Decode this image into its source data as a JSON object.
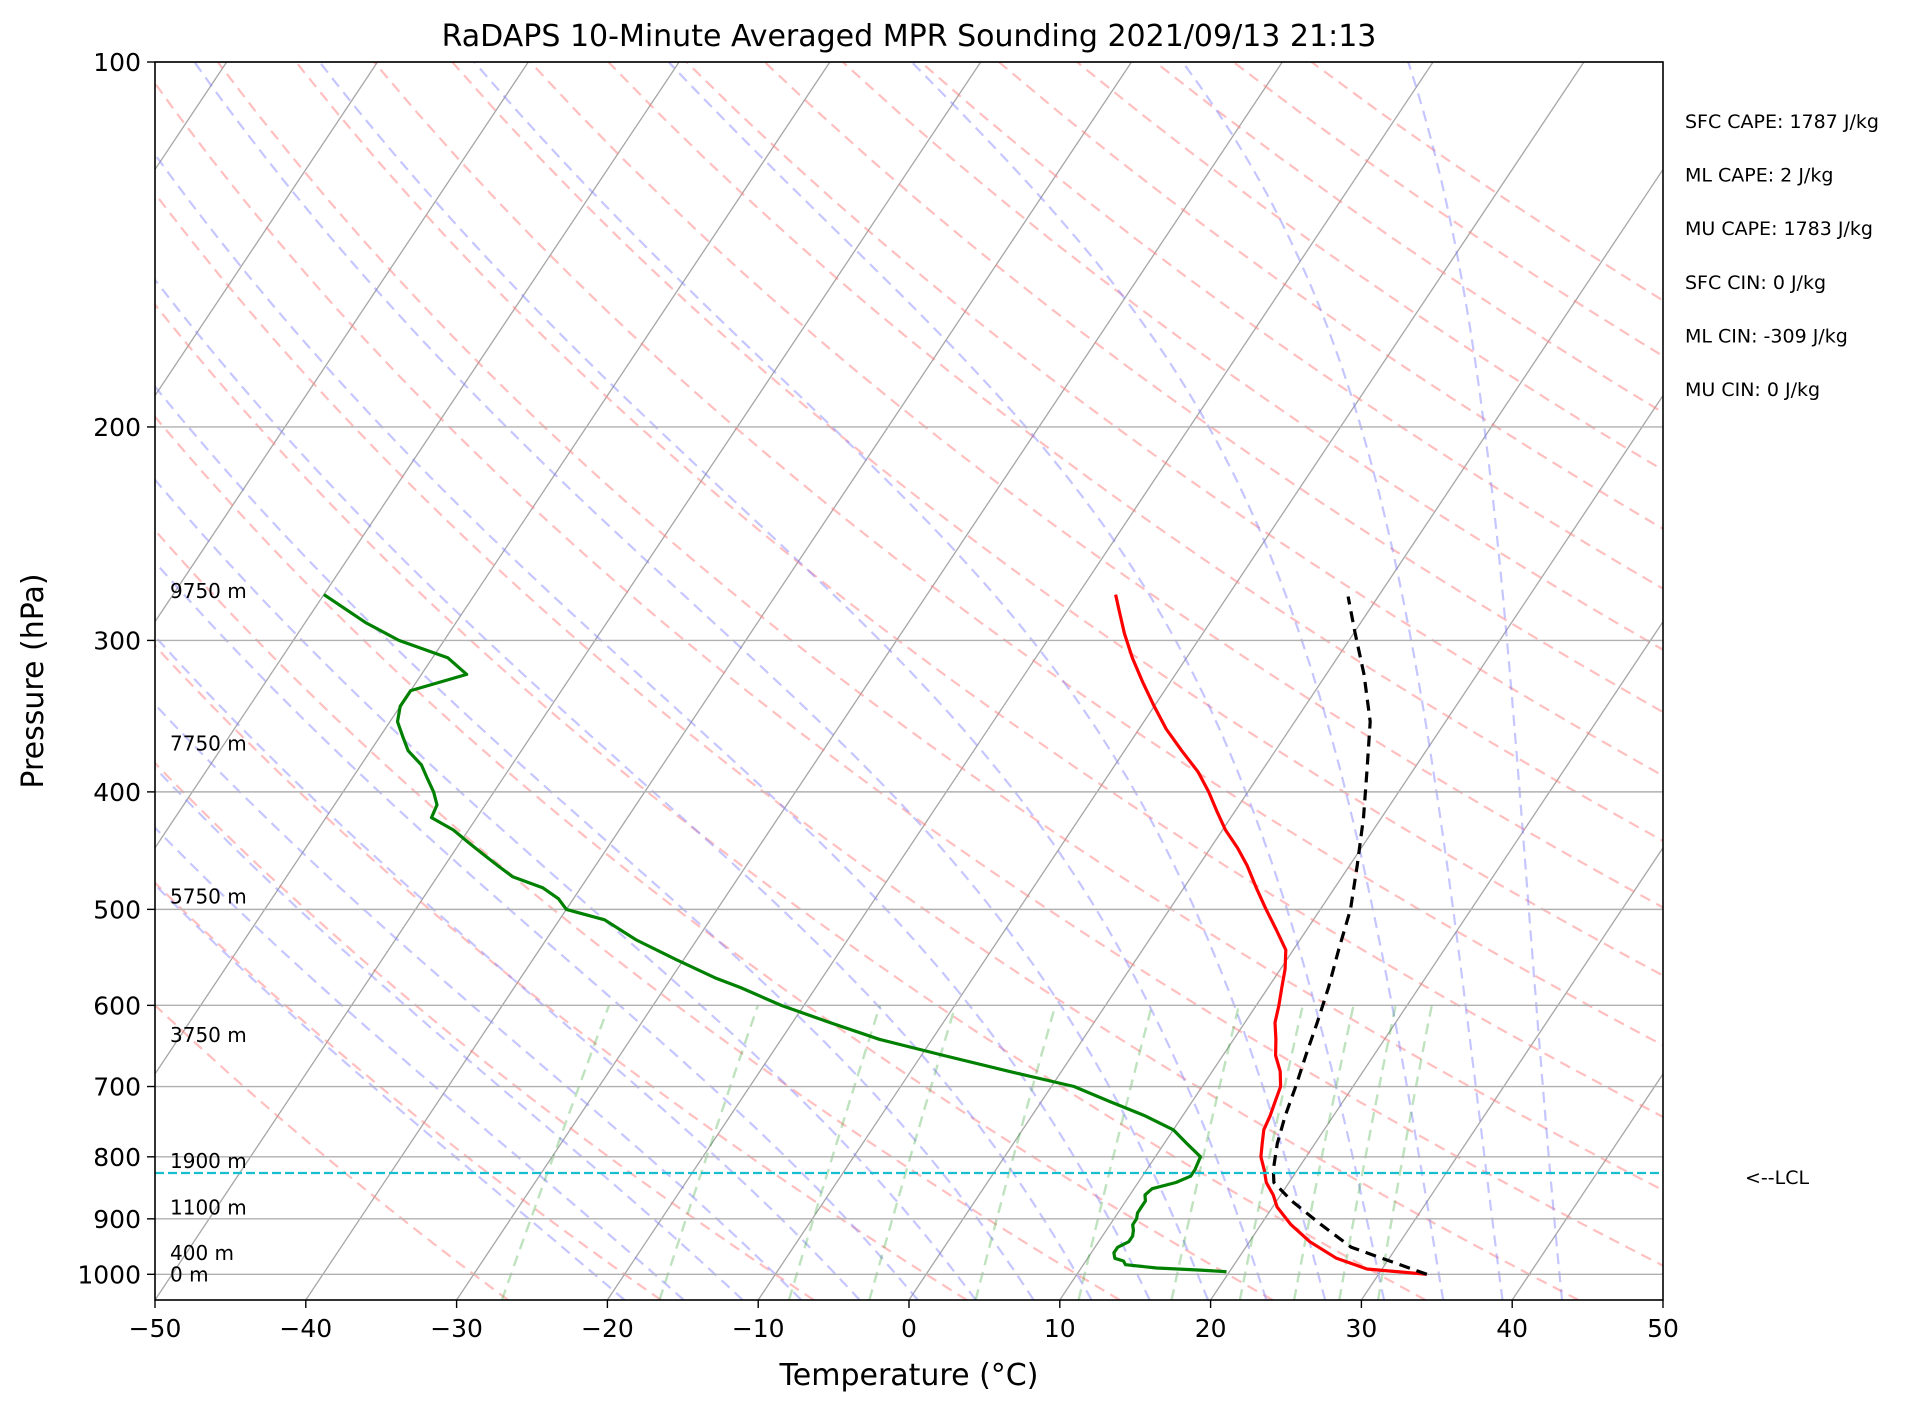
{
  "chart_data": {
    "type": "line",
    "title": "RaDAPS 10-Minute Averaged MPR Sounding 2021/09/13 21:13",
    "xlabel": "Temperature (°C)",
    "ylabel": "Pressure (hPa)",
    "xlim": [
      -50,
      50
    ],
    "ylim": [
      1050,
      100
    ],
    "y_scale": "log",
    "x_ticks": [
      "−50",
      "−40",
      "−30",
      "−20",
      "−10",
      "0",
      "10",
      "20",
      "30",
      "40",
      "50"
    ],
    "y_ticks": [
      "100",
      "200",
      "300",
      "400",
      "500",
      "600",
      "700",
      "800",
      "900",
      "1000"
    ],
    "skew": "skew-T log-P",
    "grid": true,
    "height_labels": [
      {
        "text": "9750 m",
        "p": 273
      },
      {
        "text": "7750 m",
        "p": 365
      },
      {
        "text": "5750 m",
        "p": 488
      },
      {
        "text": "3750 m",
        "p": 635
      },
      {
        "text": "1900 m",
        "p": 806
      },
      {
        "text": "1100 m",
        "p": 881
      },
      {
        "text": "400 m",
        "p": 960
      },
      {
        "text": "0 m",
        "p": 1000
      }
    ],
    "series": [
      {
        "color": "#ff0000",
        "points": [
          [
            33.2,
            1000
          ],
          [
            29,
            990
          ],
          [
            26.5,
            970
          ],
          [
            24,
            940
          ],
          [
            22,
            910
          ],
          [
            20.3,
            880
          ],
          [
            19.5,
            860
          ],
          [
            18.5,
            840
          ],
          [
            17.8,
            820
          ],
          [
            17,
            800
          ],
          [
            16.5,
            780
          ],
          [
            16,
            760
          ],
          [
            15.8,
            740
          ],
          [
            15.5,
            720
          ],
          [
            15.2,
            700
          ],
          [
            14.5,
            680
          ],
          [
            13.5,
            660
          ],
          [
            12.8,
            640
          ],
          [
            12,
            620
          ],
          [
            11.5,
            600
          ],
          [
            10.9,
            580
          ],
          [
            10.3,
            560
          ],
          [
            9.5,
            540
          ],
          [
            8,
            520
          ],
          [
            6.4,
            500
          ],
          [
            4.8,
            480
          ],
          [
            3.2,
            460
          ],
          [
            1.8,
            445
          ],
          [
            0.2,
            430
          ],
          [
            -1.2,
            415
          ],
          [
            -2.6,
            400
          ],
          [
            -4.2,
            385
          ],
          [
            -6.2,
            370
          ],
          [
            -8.2,
            355
          ],
          [
            -10,
            340
          ],
          [
            -11.8,
            325
          ],
          [
            -13.6,
            310
          ],
          [
            -15.2,
            296
          ],
          [
            -16.5,
            284
          ],
          [
            -17.5,
            275
          ]
        ]
      },
      {
        "color": "#008000",
        "points": [
          [
            19.8,
            995
          ],
          [
            18,
            992
          ],
          [
            15,
            988
          ],
          [
            12.8,
            982
          ],
          [
            12.5,
            975
          ],
          [
            11.8,
            970
          ],
          [
            11.5,
            960
          ],
          [
            11.5,
            950
          ],
          [
            12,
            940
          ],
          [
            12,
            930
          ],
          [
            11.8,
            920
          ],
          [
            11.5,
            910
          ],
          [
            11.5,
            900
          ],
          [
            11.3,
            890
          ],
          [
            11.3,
            880
          ],
          [
            11.3,
            870
          ],
          [
            11,
            860
          ],
          [
            11.2,
            850
          ],
          [
            12.5,
            840
          ],
          [
            13.2,
            830
          ],
          [
            13.2,
            820
          ],
          [
            13,
            800
          ],
          [
            11.5,
            780
          ],
          [
            10,
            760
          ],
          [
            7.5,
            740
          ],
          [
            4.5,
            720
          ],
          [
            1.5,
            700
          ],
          [
            -3.5,
            680
          ],
          [
            -8.5,
            660
          ],
          [
            -13.5,
            640
          ],
          [
            -17.5,
            620
          ],
          [
            -21.5,
            600
          ],
          [
            -25,
            580
          ],
          [
            -27,
            570
          ],
          [
            -30.5,
            550
          ],
          [
            -34,
            530
          ],
          [
            -37,
            510
          ],
          [
            -40,
            500
          ],
          [
            -41,
            490
          ],
          [
            -42.5,
            480
          ],
          [
            -45,
            470
          ],
          [
            -46.5,
            460
          ],
          [
            -48,
            450
          ],
          [
            -49.5,
            440
          ],
          [
            -51,
            430
          ],
          [
            -53,
            420
          ],
          [
            -53.2,
            410
          ],
          [
            -54,
            400
          ],
          [
            -55,
            390
          ],
          [
            -56,
            380
          ],
          [
            -57.5,
            370
          ],
          [
            -58.5,
            360
          ],
          [
            -59.5,
            350
          ],
          [
            -60,
            340
          ],
          [
            -60,
            330
          ],
          [
            -57,
            320
          ],
          [
            -59,
            310
          ],
          [
            -63,
            300
          ],
          [
            -66,
            290
          ],
          [
            -70,
            275
          ]
        ]
      },
      {
        "color": "#000000",
        "points": [
          [
            33.2,
            1000
          ],
          [
            27,
            950
          ],
          [
            24,
            910
          ],
          [
            21,
            870
          ],
          [
            19,
            840
          ],
          [
            18.4,
            820
          ],
          [
            17.5,
            780
          ],
          [
            16.8,
            740
          ],
          [
            16.2,
            700
          ],
          [
            15.5,
            660
          ],
          [
            14.8,
            620
          ],
          [
            14,
            580
          ],
          [
            13,
            540
          ],
          [
            12,
            500
          ],
          [
            10.5,
            460
          ],
          [
            8.8,
            420
          ],
          [
            7,
            385
          ],
          [
            5,
            350
          ],
          [
            2.5,
            320
          ],
          [
            0,
            295
          ],
          [
            -2,
            276
          ]
        ]
      }
    ],
    "lcl": {
      "p": 825,
      "label": "<--LCL"
    },
    "stats": [
      "SFC CAPE: 1787 J/kg",
      "ML CAPE: 2 J/kg",
      "MU CAPE: 1783 J/kg",
      "SFC CIN: 0 J/kg",
      "ML CIN: -309 J/kg",
      "MU CIN: 0 J/kg"
    ]
  }
}
